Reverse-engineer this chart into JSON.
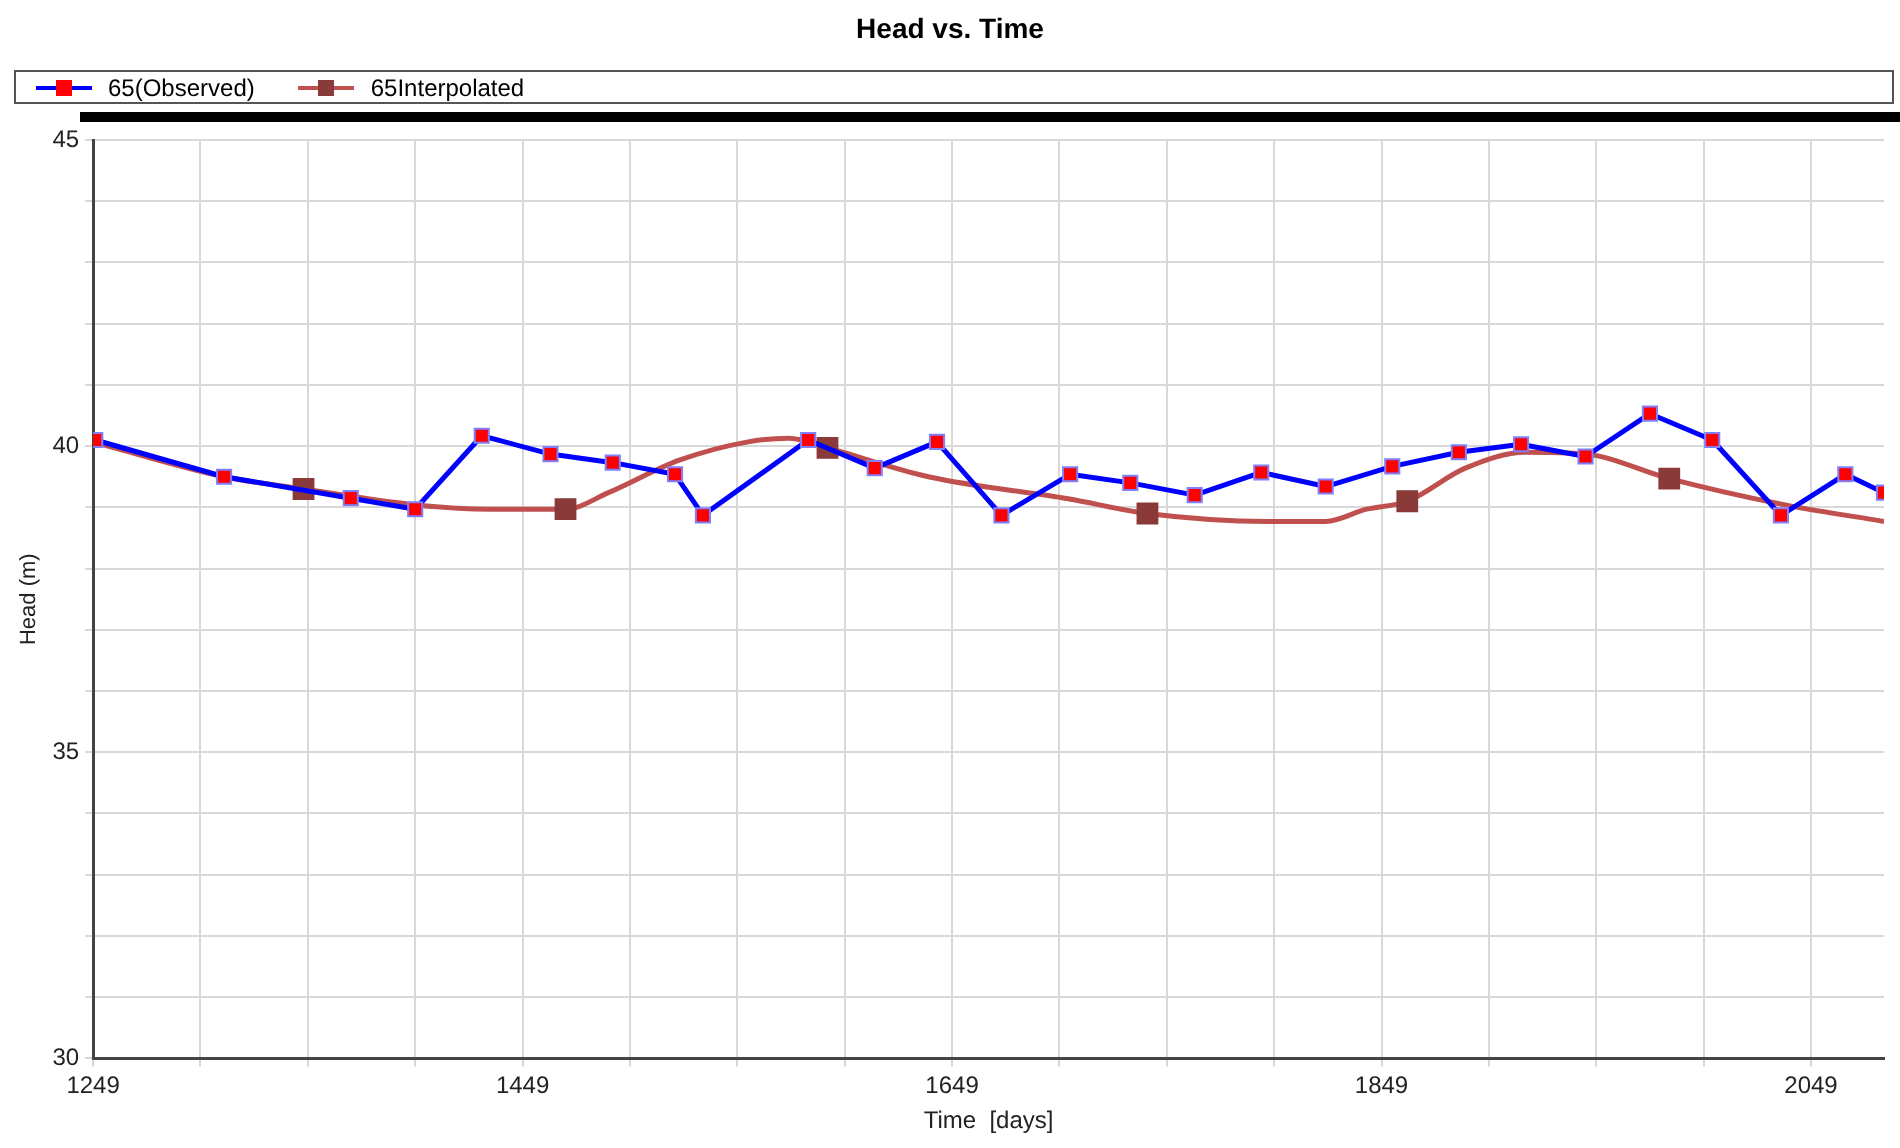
{
  "chart_data": {
    "type": "line",
    "title": "Head vs. Time",
    "xlabel": "Time  [days]",
    "ylabel": "Head (m)",
    "xlim": [
      1249,
      2083
    ],
    "ylim": [
      30,
      45
    ],
    "xticks": [
      1249,
      {
        "value": 1299,
        "label": null
      },
      {
        "value": 1349,
        "label": null
      },
      {
        "value": 1399,
        "label": null
      },
      1449,
      {
        "value": 1499,
        "label": null
      },
      {
        "value": 1549,
        "label": null
      },
      {
        "value": 1599,
        "label": null
      },
      1649,
      {
        "value": 1699,
        "label": null
      },
      {
        "value": 1749,
        "label": null
      },
      {
        "value": 1799,
        "label": null
      },
      1849,
      {
        "value": 1899,
        "label": null
      },
      {
        "value": 1949,
        "label": null
      },
      {
        "value": 1999,
        "label": null
      },
      2049
    ],
    "yticks": [
      30,
      {
        "value": 31,
        "label": null
      },
      {
        "value": 32,
        "label": null
      },
      {
        "value": 33,
        "label": null
      },
      {
        "value": 34,
        "label": null
      },
      35,
      {
        "value": 36,
        "label": null
      },
      {
        "value": 37,
        "label": null
      },
      {
        "value": 38,
        "label": null
      },
      {
        "value": 39,
        "label": null
      },
      40,
      {
        "value": 41,
        "label": null
      },
      {
        "value": 42,
        "label": null
      },
      {
        "value": 43,
        "label": null
      },
      {
        "value": 44,
        "label": null
      },
      45
    ],
    "grid": true,
    "legend": "top",
    "marker": "square",
    "series": [
      {
        "name": "65(Observed)",
        "color": "#0000ff",
        "x": [
          1250,
          1310,
          1369,
          1399,
          1430,
          1462,
          1491,
          1520,
          1533,
          1582,
          1613,
          1642,
          1672,
          1704,
          1732,
          1762,
          1793,
          1823,
          1854,
          1885,
          1914,
          1944,
          1974,
          2003,
          2035,
          2065,
          2083
        ],
        "values": [
          40.1,
          39.5,
          39.15,
          38.97,
          40.17,
          39.87,
          39.73,
          39.54,
          38.87,
          40.1,
          39.64,
          40.07,
          38.87,
          39.54,
          39.4,
          39.2,
          39.57,
          39.34,
          39.67,
          39.9,
          40.03,
          39.83,
          40.53,
          40.1,
          38.87,
          39.54,
          39.24
        ],
        "colors": [
          "#ff0000",
          "#ff0000",
          "#ff0000",
          "#ff0000",
          "#ff0000",
          "#ff0000",
          "#ff0000",
          "#ff0000",
          "#ff0000",
          "#ff0000",
          "#ff0000",
          "#ff0000",
          "#ff0000",
          "#ff0000",
          "#ff0000",
          "#ff0000",
          "#ff0000",
          "#ff0000",
          "#ff0000",
          "#ff0000",
          "#ff0000",
          "#ff0000",
          "#ff0000",
          "#ff0000",
          "#ff0000",
          "#ff0000",
          "#ff0000"
        ]
      },
      {
        "name": "65Interpolated",
        "type": "scatter",
        "color": "#8b3a3a",
        "x": [
          1347,
          1469,
          1591,
          1740,
          1861,
          1983
        ],
        "values": [
          39.3,
          38.97,
          39.97,
          38.9,
          39.1,
          39.47
        ]
      },
      {
        "color": "#c0504d",
        "marker": "none",
        "x": [
          1249,
          1310,
          1347,
          1399,
          1434,
          1469,
          1489,
          1522,
          1554,
          1573,
          1591,
          1638,
          1703,
          1740,
          1796,
          1823,
          1842,
          1861,
          1888,
          1916,
          1944,
          1983,
          2037,
          2083
        ],
        "values": [
          40.07,
          39.5,
          39.3,
          39.04,
          38.97,
          38.97,
          39.24,
          39.77,
          40.07,
          40.13,
          39.97,
          39.5,
          39.14,
          38.9,
          38.77,
          38.77,
          38.97,
          39.1,
          39.64,
          39.9,
          39.87,
          39.47,
          39.04,
          38.77
        ]
      }
    ]
  }
}
